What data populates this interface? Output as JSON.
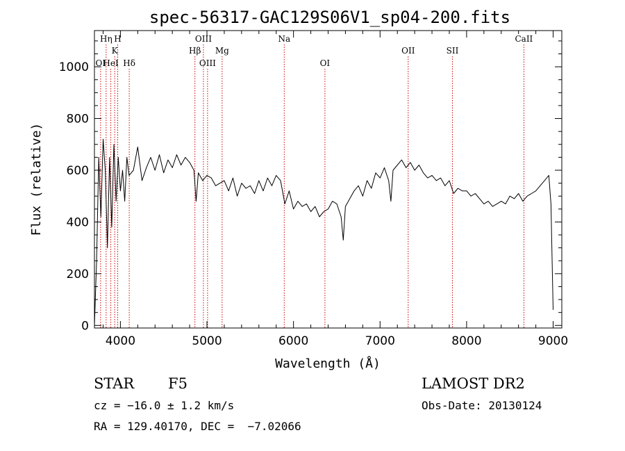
{
  "chart_data": {
    "type": "line",
    "title": "spec-56317-GAC129S06V1_sp04-200.fits",
    "xlabel": "Wavelength (Å)",
    "ylabel": "Flux (relative)",
    "xlim": [
      3700,
      9100
    ],
    "ylim": [
      -10,
      1140
    ],
    "x_ticks": [
      4000,
      5000,
      6000,
      7000,
      8000,
      9000
    ],
    "y_ticks": [
      0,
      200,
      400,
      600,
      800,
      1000
    ],
    "spectral_lines": [
      {
        "name": "OI",
        "wavelength": 3771,
        "row": 3
      },
      {
        "name": "HeI",
        "wavelength": 3889,
        "row": 3
      },
      {
        "name": "Hη",
        "wavelength": 3835,
        "row": 1
      },
      {
        "name": "K",
        "wavelength": 3934,
        "row": 2
      },
      {
        "name": "H",
        "wavelength": 3969,
        "row": 1
      },
      {
        "name": "Hδ",
        "wavelength": 4102,
        "row": 3
      },
      {
        "name": "Hβ",
        "wavelength": 4861,
        "row": 2
      },
      {
        "name": "OIII",
        "wavelength": 4959,
        "row": 1
      },
      {
        "name": "OIII",
        "wavelength": 5007,
        "row": 3
      },
      {
        "name": "Mg",
        "wavelength": 5175,
        "row": 2
      },
      {
        "name": "Na",
        "wavelength": 5893,
        "row": 1
      },
      {
        "name": "OI",
        "wavelength": 6363,
        "row": 3
      },
      {
        "name": "OII",
        "wavelength": 7325,
        "row": 2
      },
      {
        "name": "SII",
        "wavelength": 7836,
        "row": 2
      },
      {
        "name": "CaII",
        "wavelength": 8662,
        "row": 1
      }
    ],
    "series": [
      {
        "name": "flux",
        "wavelength": [
          3700,
          3725,
          3750,
          3775,
          3800,
          3825,
          3850,
          3875,
          3900,
          3925,
          3950,
          3975,
          4000,
          4025,
          4050,
          4075,
          4100,
          4150,
          4200,
          4250,
          4300,
          4350,
          4400,
          4450,
          4500,
          4550,
          4600,
          4650,
          4700,
          4750,
          4800,
          4850,
          4875,
          4900,
          4950,
          5000,
          5050,
          5100,
          5150,
          5200,
          5250,
          5300,
          5350,
          5400,
          5450,
          5500,
          5550,
          5600,
          5650,
          5700,
          5750,
          5800,
          5850,
          5900,
          5950,
          6000,
          6050,
          6100,
          6150,
          6200,
          6250,
          6300,
          6350,
          6400,
          6450,
          6500,
          6550,
          6575,
          6600,
          6650,
          6700,
          6750,
          6800,
          6850,
          6900,
          6950,
          7000,
          7050,
          7100,
          7125,
          7150,
          7200,
          7250,
          7300,
          7350,
          7400,
          7450,
          7500,
          7550,
          7600,
          7650,
          7700,
          7750,
          7800,
          7850,
          7900,
          7950,
          8000,
          8050,
          8100,
          8150,
          8200,
          8250,
          8300,
          8350,
          8400,
          8450,
          8500,
          8550,
          8600,
          8650,
          8700,
          8750,
          8800,
          8850,
          8900,
          8950,
          8975,
          9000
        ],
        "flux": [
          0,
          250,
          650,
          420,
          720,
          600,
          300,
          650,
          380,
          700,
          480,
          650,
          520,
          600,
          480,
          650,
          580,
          600,
          690,
          560,
          610,
          650,
          600,
          660,
          590,
          640,
          610,
          660,
          620,
          650,
          630,
          600,
          480,
          590,
          560,
          580,
          570,
          540,
          550,
          560,
          520,
          570,
          500,
          550,
          530,
          540,
          510,
          560,
          520,
          570,
          540,
          580,
          560,
          470,
          520,
          450,
          480,
          460,
          470,
          440,
          460,
          420,
          440,
          450,
          480,
          470,
          420,
          330,
          460,
          490,
          520,
          540,
          500,
          560,
          530,
          590,
          570,
          610,
          560,
          480,
          600,
          620,
          640,
          610,
          630,
          600,
          620,
          590,
          570,
          580,
          560,
          570,
          540,
          560,
          510,
          530,
          520,
          520,
          500,
          510,
          490,
          470,
          480,
          460,
          470,
          480,
          470,
          500,
          490,
          510,
          480,
          500,
          510,
          520,
          540,
          560,
          580,
          470,
          60
        ]
      }
    ],
    "annotations": {
      "object_class": "STAR",
      "subclass": "F5",
      "survey": "LAMOST DR2",
      "cz": "cz = −16.0 ± 1.2 km/s",
      "obs_date": "Obs-Date: 20130124",
      "coords": "RA = 129.40170, DEC =  −7.02066"
    }
  },
  "colors": {
    "spectrum": "#000000",
    "line_marker": "#cc0000",
    "axis": "#000000"
  }
}
